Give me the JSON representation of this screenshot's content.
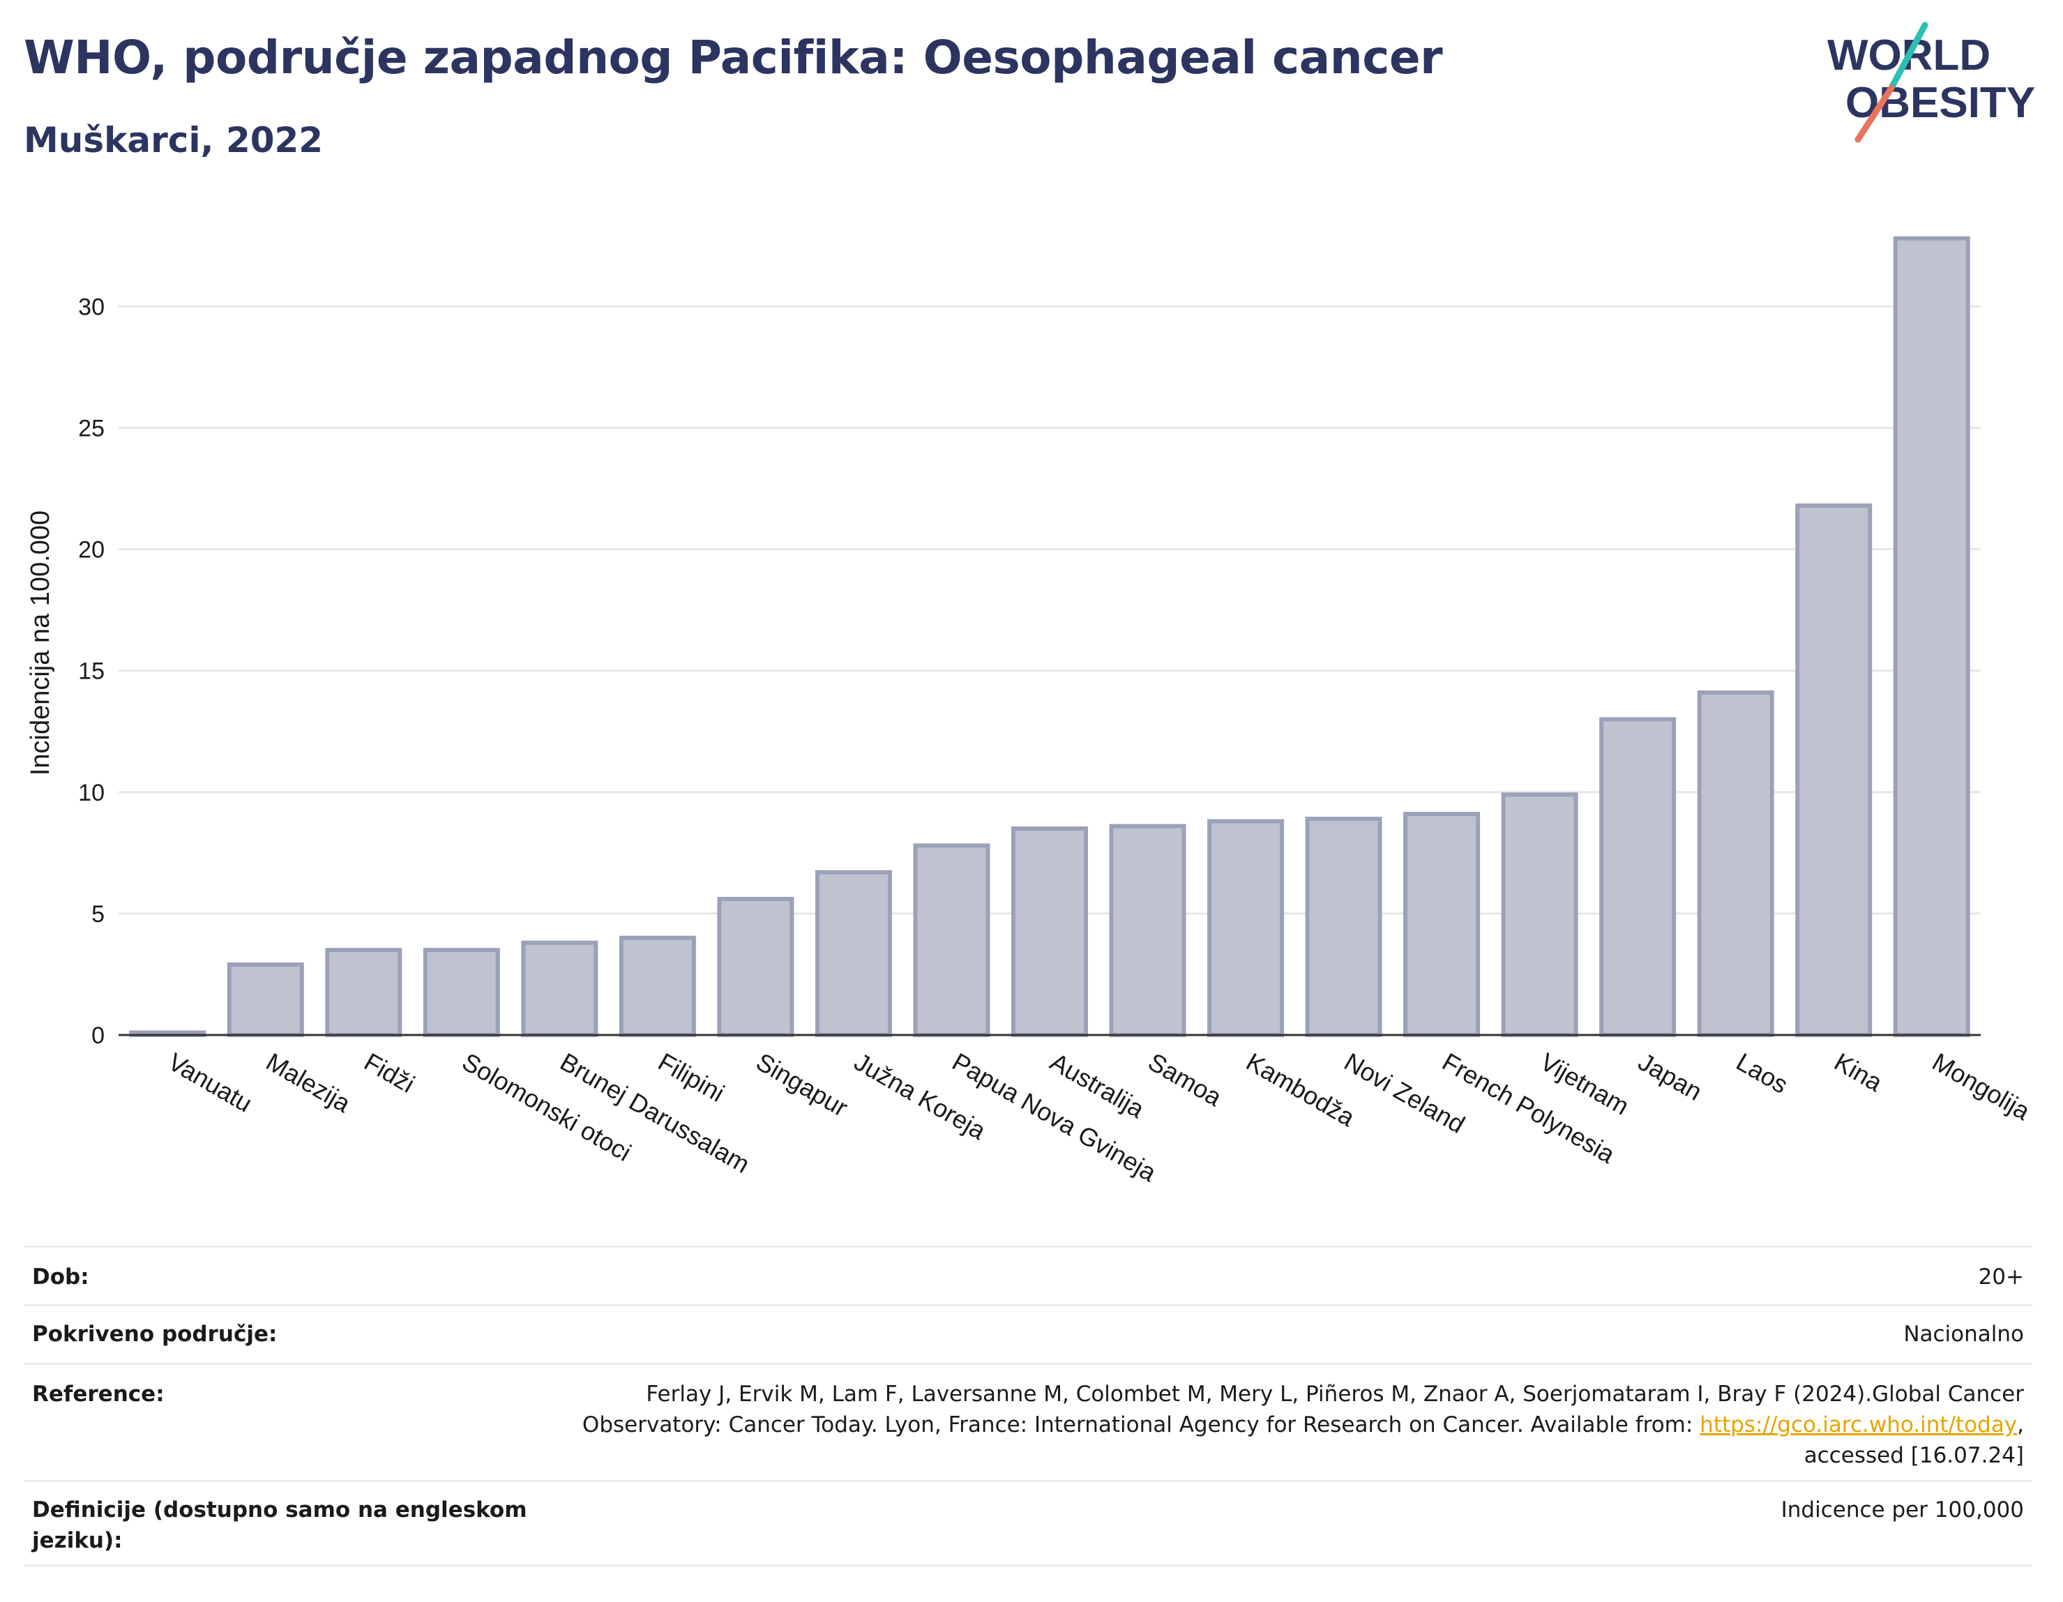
{
  "header": {
    "title": "WHO, područje zapadnog Pacifika: Oesophageal cancer",
    "subtitle": "Muškarci, 2022",
    "logo_line1": "WORLD",
    "logo_line2": "OBESITY"
  },
  "colors": {
    "title": "#2b3560",
    "bar_fill": "#bfc3d0",
    "bar_stroke": "#9ba1b8",
    "logo_teal": "#2bbfb3",
    "logo_red": "#e8735f",
    "link": "#e6a400"
  },
  "chart_data": {
    "type": "bar",
    "categories": [
      "Vanuatu",
      "Malezija",
      "Fidži",
      "Solomonski otoci",
      "Brunej Darussalam",
      "Filipini",
      "Singapur",
      "Južna Koreja",
      "Papua Nova Gvineja",
      "Australija",
      "Samoa",
      "Kambodža",
      "Novi Zeland",
      "French Polynesia",
      "Vijetnam",
      "Japan",
      "Laos",
      "Kina",
      "Mongolija"
    ],
    "values": [
      0.1,
      2.9,
      3.5,
      3.5,
      3.8,
      4.0,
      5.6,
      6.7,
      7.8,
      8.5,
      8.6,
      8.8,
      8.9,
      9.1,
      9.9,
      13.0,
      14.1,
      21.8,
      32.8
    ],
    "ylabel": "Incidencija na 100.000",
    "xlabel": "",
    "ylim": [
      0,
      34
    ],
    "yticks": [
      0,
      5,
      10,
      15,
      20,
      25,
      30
    ],
    "grid": true
  },
  "meta": {
    "rows": [
      {
        "label": "Dob:",
        "value": "20+"
      },
      {
        "label": "Pokriveno područje:",
        "value": "Nacionalno"
      },
      {
        "label": "Reference:",
        "value_part1": "Ferlay J, Ervik M, Lam F, Laversanne M, Colombet M, Mery L, Piñeros M, Znaor A, Soerjomataram I, Bray F (2024).Global Cancer Observatory: Cancer Today. Lyon, France: International Agency for Research on Cancer. Available from: ",
        "link": "https://gco.iarc.who.int/today",
        "value_part2": ", accessed [16.07.24]"
      },
      {
        "label": "Definicije (dostupno samo na engleskom jeziku):",
        "value": "Indicence per 100,000"
      }
    ]
  }
}
